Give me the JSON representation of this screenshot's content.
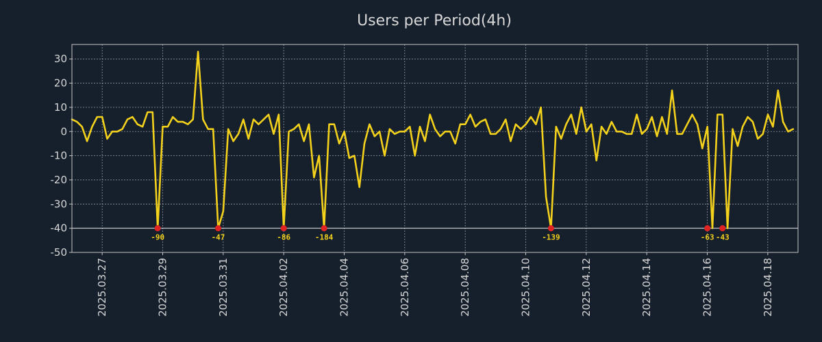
{
  "chart_data": {
    "type": "line",
    "title": "Users per Period(4h)",
    "xlabel": "",
    "ylabel": "",
    "grid": true,
    "ylim": [
      -50,
      36
    ],
    "yticks": [
      -50,
      -40,
      -30,
      -20,
      -10,
      0,
      10,
      20,
      30
    ],
    "x_start": "2025-03-26",
    "x_range_days": [
      0,
      24.0
    ],
    "xticks": [
      {
        "day": 1,
        "label": "2025.03.27"
      },
      {
        "day": 3,
        "label": "2025.03.29"
      },
      {
        "day": 5,
        "label": "2025.03.31"
      },
      {
        "day": 7,
        "label": "2025.04.02"
      },
      {
        "day": 9,
        "label": "2025.04.04"
      },
      {
        "day": 11,
        "label": "2025.04.06"
      },
      {
        "day": 13,
        "label": "2025.04.08"
      },
      {
        "day": 15,
        "label": "2025.04.10"
      },
      {
        "day": 17,
        "label": "2025.04.12"
      },
      {
        "day": 19,
        "label": "2025.04.14"
      },
      {
        "day": 21,
        "label": "2025.04.16"
      },
      {
        "day": 23,
        "label": "2025.04.18"
      }
    ],
    "clip_floor": -40,
    "series": [
      {
        "name": "Users",
        "color": "#f4d21c",
        "step_days": 0.1667,
        "values": [
          5,
          4,
          2,
          -4,
          2,
          6,
          6,
          -3,
          0,
          0,
          1,
          5,
          6,
          3,
          2,
          8,
          8,
          -40,
          2,
          2,
          6,
          4,
          4,
          3,
          5,
          33,
          5,
          1,
          1,
          -40,
          -33,
          1,
          -4,
          -1,
          5,
          -3,
          5,
          3,
          5,
          7,
          -1,
          7,
          -40,
          0,
          1,
          3,
          -4,
          3,
          -19,
          -10,
          -40,
          3,
          3,
          -5,
          0,
          -11,
          -10,
          -23,
          -5,
          3,
          -2,
          0,
          -10,
          1,
          -1,
          0,
          0,
          2,
          -10,
          2,
          -4,
          7,
          1,
          -2,
          0,
          0,
          -5,
          3,
          3,
          7,
          2,
          4,
          5,
          -1,
          -1,
          1,
          5,
          -4,
          3,
          1,
          3,
          6,
          3,
          10,
          -27,
          -40,
          2,
          -3,
          3,
          7,
          -1,
          10,
          0,
          3,
          -12,
          2,
          -1,
          4,
          0,
          0,
          -1,
          -1,
          7,
          -1,
          1,
          6,
          -2,
          6,
          -1,
          17,
          -1,
          -1,
          3,
          7,
          3,
          -7,
          2,
          -40,
          7,
          7,
          -40,
          1,
          -6,
          2,
          6,
          4,
          -3,
          -1,
          7,
          2,
          17,
          4,
          0,
          1
        ]
      }
    ],
    "outliers": [
      {
        "index": 17,
        "label": "-90"
      },
      {
        "index": 29,
        "label": "-47"
      },
      {
        "index": 42,
        "label": "-86"
      },
      {
        "index": 50,
        "label": "-184"
      },
      {
        "index": 95,
        "label": "-139"
      },
      {
        "index": 126,
        "label": "-63"
      },
      {
        "index": 129,
        "label": "-43"
      }
    ]
  },
  "colors": {
    "background": "#16202c",
    "axis": "#c8c8c8",
    "text": "#d7d7d7",
    "grid": "#a9aeb6",
    "outlier_marker": "#e02424",
    "outlier_label": "#f4d21c"
  }
}
